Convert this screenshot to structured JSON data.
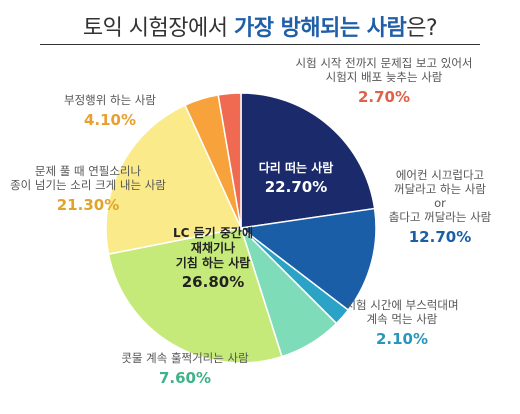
{
  "title": {
    "prefix": "토익 시험장에서 ",
    "highlight": "가장 방해되는 사람",
    "suffix": "은?"
  },
  "chart_data": {
    "type": "pie",
    "slices": [
      {
        "label": "다리 떠는 사람",
        "label_lines": [
          "다리 떠는 사람"
        ],
        "value": 22.7,
        "display": "22.70%",
        "color": "#1b2a6b",
        "text_color": "#ffffff",
        "inside": true
      },
      {
        "label": "에어컨 시끄럽다고 꺼달라고 하는 사람 or 춥다고 꺼달라는 사람",
        "label_lines": [
          "에어컨 시끄럽다고",
          "꺼달라고 하는 사람",
          "or",
          "춥다고 꺼달라는 사람"
        ],
        "value": 12.7,
        "display": "12.70%",
        "color": "#1b5ea8",
        "text_color": "#1b5ea8",
        "inside": false
      },
      {
        "label": "시험 시간에 부스럭대며 계속 먹는 사람",
        "label_lines": [
          "시험 시간에 부스럭대며",
          "계속 먹는 사람"
        ],
        "value": 2.1,
        "display": "2.10%",
        "color": "#2ba3c7",
        "text_color": "#2896be",
        "inside": false
      },
      {
        "label": "콧물 계속 훌쩍거리는 사람",
        "label_lines": [
          "콧물 계속 훌쩍거리는 사람"
        ],
        "value": 7.6,
        "display": "7.60%",
        "color": "#7fdcb8",
        "text_color": "#3eb389",
        "inside": false
      },
      {
        "label": "LC 듣기 중간에 재채기나 기침 하는 사람",
        "label_lines": [
          "LC 듣기 중간에",
          "재채기나",
          "기침 하는 사람"
        ],
        "value": 26.8,
        "display": "26.80%",
        "color": "#c6ea7a",
        "text_color": "#222222",
        "inside": true
      },
      {
        "label": "문제 풀 때 연필소리나 종이 넘기는 소리 크게 내는 사람",
        "label_lines": [
          "문제 풀 때 연필소리나",
          "종이 넘기는 소리 크게 내는 사람"
        ],
        "value": 21.3,
        "display": "21.30%",
        "color": "#fbea8a",
        "text_color": "#e0a42a",
        "inside": false
      },
      {
        "label": "부정행위 하는 사람",
        "label_lines": [
          "부정행위 하는 사람"
        ],
        "value": 4.1,
        "display": "4.10%",
        "color": "#f7a23a",
        "text_color": "#e8a030",
        "inside": false
      },
      {
        "label": "시험 시작 전까지 문제집 보고 있어서 시험지 배포 늦추는 사람",
        "label_lines": [
          "시험 시작 전까지 문제집 보고 있어서",
          "시험지 배포 늦추는 사람"
        ],
        "value": 2.7,
        "display": "2.70%",
        "color": "#ef6a50",
        "text_color": "#e0604a",
        "inside": false
      }
    ]
  }
}
